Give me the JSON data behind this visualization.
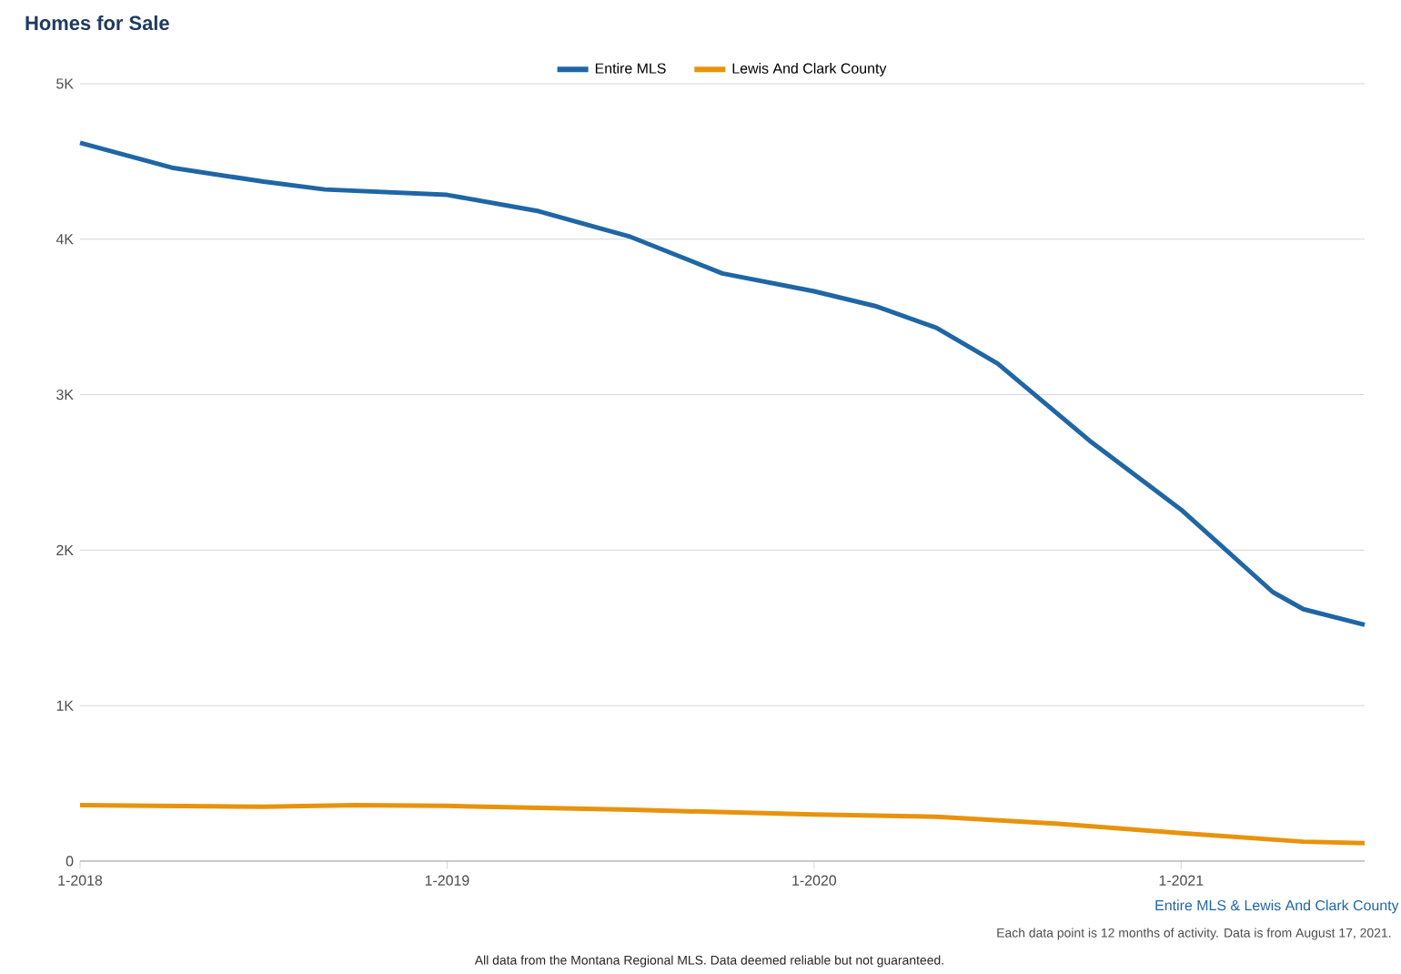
{
  "chart_data": {
    "type": "line",
    "title": "Homes for Sale",
    "xlim": [
      "2018-01",
      "2021-07"
    ],
    "xticks": [
      {
        "value": "2018-01",
        "label": "1-2018"
      },
      {
        "value": "2019-01",
        "label": "1-2019"
      },
      {
        "value": "2020-01",
        "label": "1-2020"
      },
      {
        "value": "2021-01",
        "label": "1-2021"
      }
    ],
    "ylim": [
      0,
      5000
    ],
    "yticks": [
      {
        "value": 0,
        "label": "0"
      },
      {
        "value": 1000,
        "label": "1K"
      },
      {
        "value": 2000,
        "label": "2K"
      },
      {
        "value": 3000,
        "label": "3K"
      },
      {
        "value": 4000,
        "label": "4K"
      },
      {
        "value": 5000,
        "label": "5K"
      }
    ],
    "series": [
      {
        "name": "Entire MLS",
        "color": "#1f66a5",
        "x": [
          "2018-01",
          "2018-04",
          "2018-07",
          "2018-09",
          "2019-01",
          "2019-04",
          "2019-07",
          "2019-10",
          "2020-01",
          "2020-03",
          "2020-05",
          "2020-07",
          "2020-10",
          "2021-01",
          "2021-04",
          "2021-05",
          "2021-07"
        ],
        "values": [
          4620,
          4460,
          4370,
          4320,
          4285,
          4180,
          4015,
          3780,
          3665,
          3570,
          3430,
          3200,
          2705,
          2260,
          1730,
          1620,
          1520
        ]
      },
      {
        "name": "Lewis And Clark County",
        "color": "#e8930c",
        "x": [
          "2018-01",
          "2018-07",
          "2018-10",
          "2019-01",
          "2019-07",
          "2020-01",
          "2020-05",
          "2020-09",
          "2021-01",
          "2021-05",
          "2021-07"
        ],
        "values": [
          360,
          350,
          360,
          355,
          330,
          300,
          285,
          240,
          180,
          125,
          115
        ]
      }
    ],
    "grid": "y",
    "legend": "top",
    "marker": "none",
    "line_style": "solid",
    "annotations": [
      "Entire MLS & Lewis And Clark County",
      "Each data point is 12 months of activity. Data is from August 17, 2021.",
      "All data from the Montana Regional MLS. Data deemed reliable but not guaranteed."
    ]
  }
}
